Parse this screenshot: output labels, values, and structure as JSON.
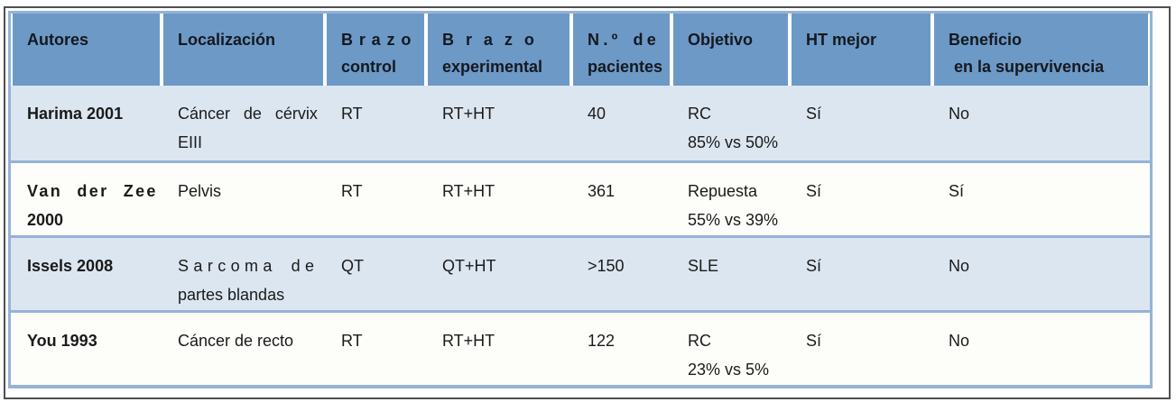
{
  "table": {
    "columns": [
      {
        "label": "Autores",
        "lines": [
          "Autores"
        ]
      },
      {
        "label": "Localización",
        "lines": [
          "Localización"
        ]
      },
      {
        "label": "Brazo control",
        "lines": [
          "Brazo",
          "control"
        ]
      },
      {
        "label": "Brazo experimental",
        "lines": [
          "Brazo",
          "experimental"
        ]
      },
      {
        "label": "N.º de pacientes",
        "lines": [
          "N.º de",
          "pacientes"
        ]
      },
      {
        "label": "Objetivo",
        "lines": [
          "Objetivo"
        ]
      },
      {
        "label": "HT mejor",
        "lines": [
          "HT mejor"
        ]
      },
      {
        "label": "Beneficio en la supervivencia",
        "lines": [
          "Beneficio",
          "en la supervivencia"
        ]
      }
    ],
    "rows": [
      {
        "autores": [
          "Harima 2001"
        ],
        "localizacion": [
          "Cáncer de cérvix",
          "EIII"
        ],
        "brazo_control": "RT",
        "brazo_experimental": "RT+HT",
        "pacientes": "40",
        "objetivo": [
          "RC",
          "85% vs 50%"
        ],
        "ht_mejor": "Sí",
        "beneficio": "No"
      },
      {
        "autores": [
          "Van der Zee",
          "2000"
        ],
        "localizacion": [
          "Pelvis"
        ],
        "brazo_control": "RT",
        "brazo_experimental": "RT+HT",
        "pacientes": "361",
        "objetivo": [
          "Repuesta",
          "55% vs 39%"
        ],
        "ht_mejor": "Sí",
        "beneficio": "Sí"
      },
      {
        "autores": [
          "Issels 2008"
        ],
        "localizacion": [
          "Sarcoma de",
          "partes blandas"
        ],
        "brazo_control": "QT",
        "brazo_experimental": "QT+HT",
        "pacientes": ">150",
        "objetivo": [
          "SLE"
        ],
        "ht_mejor": "Sí",
        "beneficio": "No"
      },
      {
        "autores": [
          "You 1993"
        ],
        "localizacion": [
          "Cáncer de recto"
        ],
        "brazo_control": "RT",
        "brazo_experimental": "RT+HT",
        "pacientes": "122",
        "objetivo": [
          "RC",
          "23% vs 5%"
        ],
        "ht_mejor": "Sí",
        "beneficio": "No"
      }
    ],
    "colors": {
      "header_fill": "#6d99c7",
      "grid_border": "#95b3d7",
      "row_alt_fill": "#dce6f1",
      "row_fill": "#fdfdfa",
      "header_text": "#14191f",
      "body_text": "#1a1a1a",
      "frame_border": "#4f4f4f"
    }
  }
}
